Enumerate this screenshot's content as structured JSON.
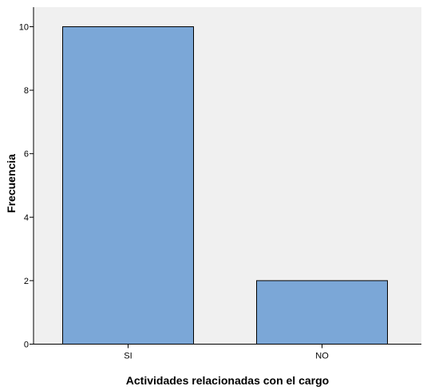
{
  "chart_data": {
    "type": "bar",
    "categories": [
      "SI",
      "NO"
    ],
    "values": [
      10,
      2
    ],
    "xlabel": "Actividades relacionadas con el cargo",
    "ylabel": "Frecuencia",
    "ylim": [
      0,
      10
    ],
    "yticks": [
      0,
      2,
      4,
      6,
      8,
      10
    ],
    "grid": false,
    "legend": "none",
    "colors": {
      "bar_fill": "#7BA7D7",
      "bar_stroke": "#000000",
      "plot_background": "#F0F0F0",
      "axis": "#000000"
    }
  }
}
